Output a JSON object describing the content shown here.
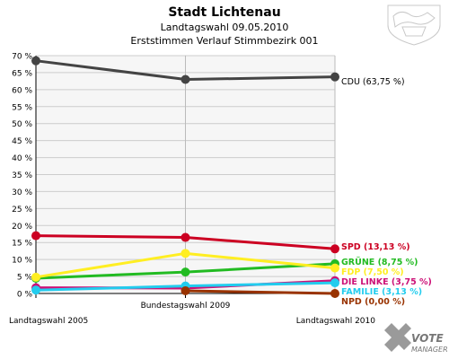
{
  "header": {
    "title": "Stadt Lichtenau",
    "subtitle1": "Landtagswahl 09.05.2010",
    "subtitle2": "Erststimmen Verlauf Stimmbezirk 001"
  },
  "branding": {
    "logo_line1": "VOTE",
    "logo_line2": "MANAGER"
  },
  "chart_data": {
    "type": "line",
    "title": "Stadt Lichtenau",
    "x": [
      "Landtagswahl 2005",
      "Bundestagswahl 2009",
      "Landtagswahl 2010"
    ],
    "ylim": [
      0,
      70
    ],
    "yticks": [
      0,
      5,
      10,
      15,
      20,
      25,
      30,
      35,
      40,
      45,
      50,
      55,
      60,
      65,
      70
    ],
    "ytick_labels": [
      "0 %",
      "5 %",
      "10 %",
      "15 %",
      "20 %",
      "25 %",
      "30 %",
      "35 %",
      "40 %",
      "45 %",
      "50 %",
      "55 %",
      "60 %",
      "65 %",
      "70 %"
    ],
    "grid": true,
    "series": [
      {
        "name": "CDU",
        "label": "CDU (63,75 %)",
        "color": "#444444",
        "values": [
          68.5,
          63.0,
          63.75
        ]
      },
      {
        "name": "SPD",
        "label": "SPD (13,13 %)",
        "color": "#cc0022",
        "values": [
          17.0,
          16.5,
          13.13
        ]
      },
      {
        "name": "GRÜNE",
        "label": "GRÜNE (8,75 %)",
        "color": "#22bb22",
        "values": [
          4.5,
          6.3,
          8.75
        ]
      },
      {
        "name": "FDP",
        "label": "FDP (7,50 %)",
        "color": "#ffee22",
        "values": [
          4.8,
          11.8,
          7.5
        ]
      },
      {
        "name": "DIE LINKE",
        "label": "DIE LINKE (3,75 %)",
        "color": "#cc1177",
        "values": [
          1.7,
          1.6,
          3.75
        ]
      },
      {
        "name": "FAMILIE",
        "label": "FAMILIE (3,13 %)",
        "color": "#22ccee",
        "values": [
          1.0,
          2.2,
          3.13
        ]
      },
      {
        "name": "NPD",
        "label": "NPD (0,00 %)",
        "color": "#993300",
        "values": [
          null,
          0.8,
          0.0
        ]
      }
    ]
  }
}
